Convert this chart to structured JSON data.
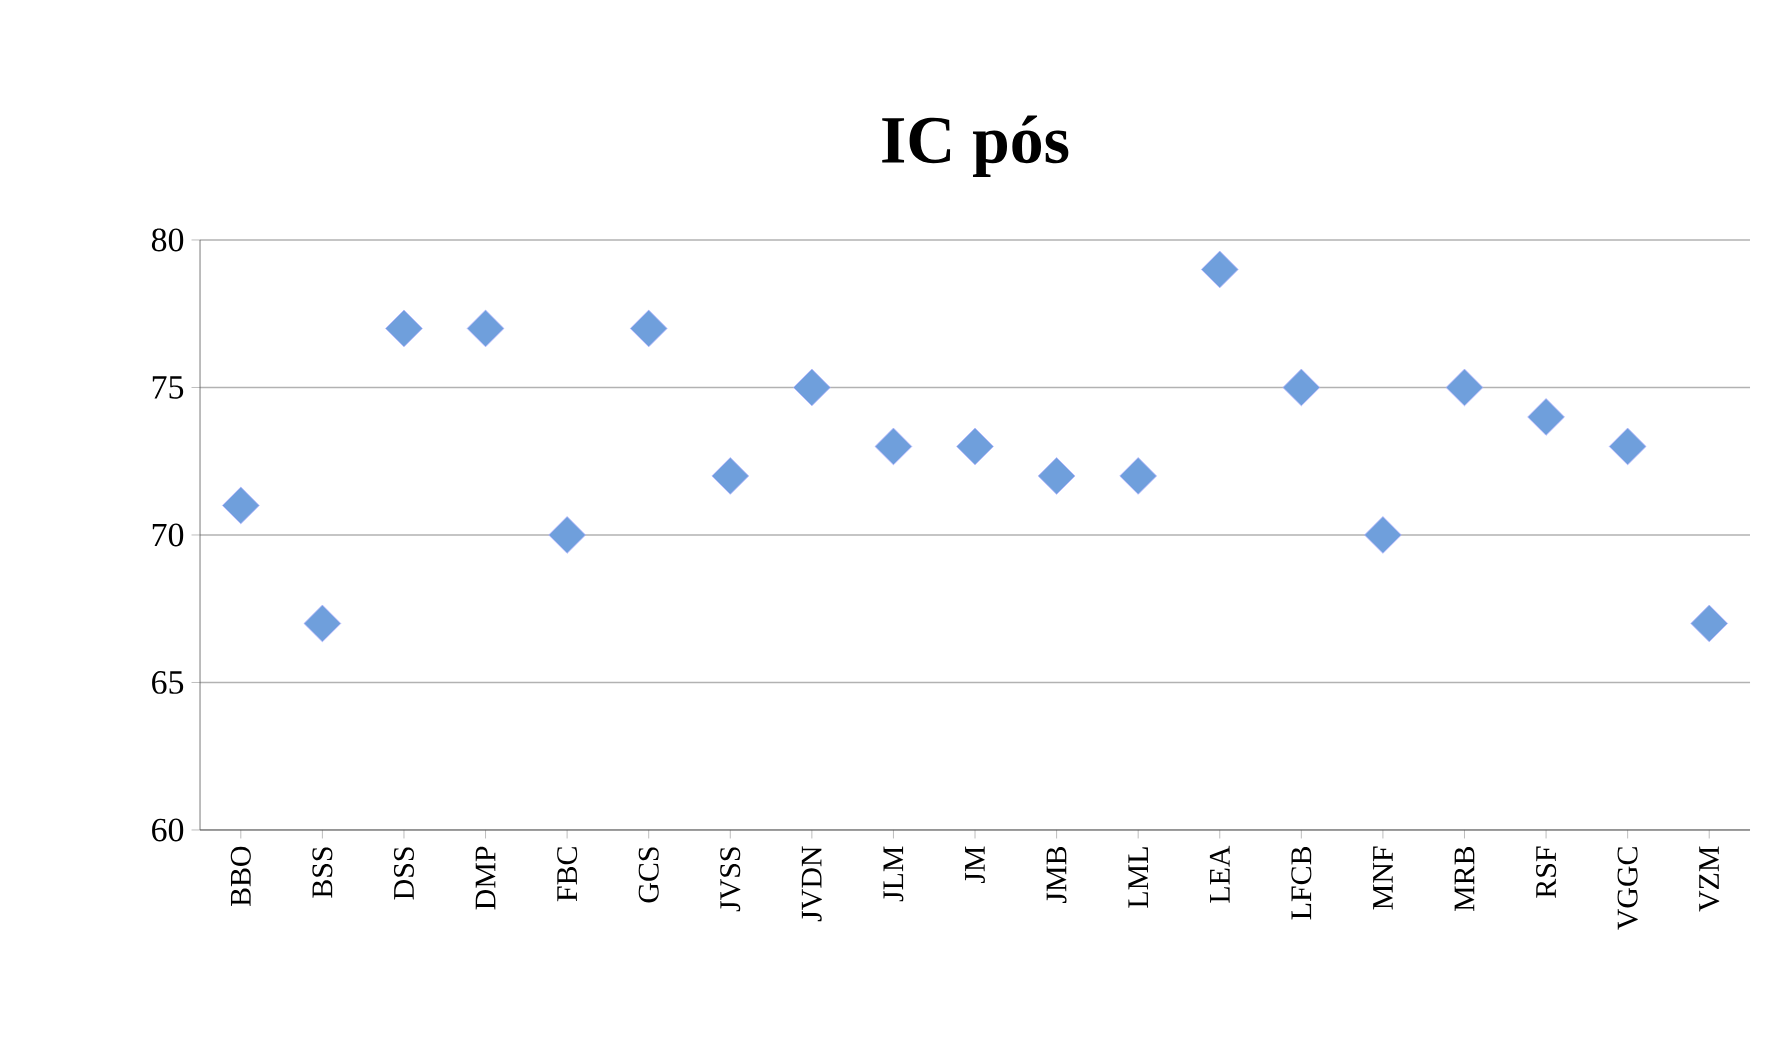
{
  "chart_data": {
    "type": "scatter",
    "title": "**IC pós**",
    "categories": [
      "BBO",
      "BSS",
      "DSS",
      "DMP",
      "FBC",
      "GCS",
      "JVSS",
      "JVDN",
      "JLM",
      "JM",
      "JMB",
      "LML",
      "LEA",
      "LFCB",
      "MNF",
      "MRB",
      "RSF",
      "VGGC",
      "VZM"
    ],
    "values": [
      71,
      67,
      77,
      77,
      70,
      77,
      72,
      75,
      73,
      73,
      72,
      72,
      79,
      75,
      70,
      75,
      74,
      73,
      67
    ],
    "color": "#6f9fdc",
    "marker": "diamond",
    "grid": "y",
    "ylim": [
      60,
      80
    ],
    "yticks": [
      60,
      65,
      70,
      75,
      80
    ]
  }
}
